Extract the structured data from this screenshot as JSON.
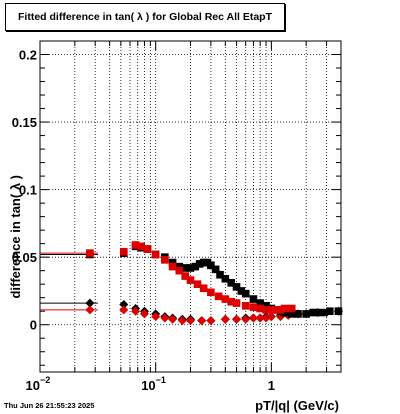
{
  "chart_data": {
    "type": "scatter",
    "title": "Fitted difference in tan( λ ) for Global Rec All EtapT",
    "xlabel": "pT/|q| (GeV/c)",
    "ylabel": "difference in tan( λ )",
    "xscale": "log",
    "xlim": [
      0.01,
      4.0
    ],
    "ylim": [
      -0.035,
      0.21
    ],
    "grid": true,
    "xticks": [
      {
        "v": 0.01,
        "base": "10",
        "exp": "−2"
      },
      {
        "v": 0.1,
        "base": "10",
        "exp": "−1"
      },
      {
        "v": 1,
        "base": "1",
        "exp": ""
      }
    ],
    "yticks": [
      {
        "v": 0,
        "label": "0"
      },
      {
        "v": 0.05,
        "label": "0.05"
      },
      {
        "v": 0.1,
        "label": "0.1"
      },
      {
        "v": 0.15,
        "label": "0.15"
      },
      {
        "v": 0.2,
        "label": "0.2"
      }
    ],
    "series": [
      {
        "marker": "square",
        "color": "#000000",
        "x": [
          0.027,
          0.053,
          0.067,
          0.075,
          0.085,
          0.1,
          0.12,
          0.14,
          0.16,
          0.18,
          0.2,
          0.22,
          0.24,
          0.26,
          0.28,
          0.3,
          0.33,
          0.36,
          0.4,
          0.45,
          0.5,
          0.55,
          0.6,
          0.7,
          0.8,
          0.9,
          1.0,
          1.1,
          1.2,
          1.3,
          1.5,
          1.7,
          2.0,
          2.3,
          2.7,
          3.2,
          3.8
        ],
        "y": [
          0.052,
          0.053,
          0.058,
          0.057,
          0.056,
          0.052,
          0.05,
          0.046,
          0.043,
          0.042,
          0.042,
          0.043,
          0.045,
          0.046,
          0.046,
          0.044,
          0.041,
          0.037,
          0.034,
          0.031,
          0.028,
          0.025,
          0.023,
          0.019,
          0.016,
          0.014,
          0.012,
          0.011,
          0.01,
          0.009,
          0.008,
          0.008,
          0.008,
          0.009,
          0.009,
          0.01,
          0.01
        ]
      },
      {
        "marker": "square",
        "color": "#dd0000",
        "x": [
          0.027,
          0.053,
          0.067,
          0.075,
          0.085,
          0.1,
          0.12,
          0.14,
          0.16,
          0.18,
          0.2,
          0.23,
          0.26,
          0.3,
          0.35,
          0.4,
          0.45,
          0.5,
          0.6,
          0.7,
          0.8,
          0.9,
          1.0,
          1.1,
          1.2,
          1.3,
          1.5
        ],
        "y": [
          0.053,
          0.054,
          0.059,
          0.058,
          0.056,
          0.052,
          0.048,
          0.043,
          0.04,
          0.036,
          0.033,
          0.03,
          0.027,
          0.024,
          0.021,
          0.019,
          0.017,
          0.016,
          0.014,
          0.013,
          0.012,
          0.011,
          0.011,
          0.011,
          0.011,
          0.012,
          0.012
        ]
      },
      {
        "marker": "diamond",
        "color": "#000000",
        "x": [
          0.027,
          0.053,
          0.067,
          0.08,
          0.1,
          0.12,
          0.14,
          0.17,
          0.2,
          0.25,
          0.3,
          0.4,
          0.5,
          0.6,
          0.7,
          0.8,
          0.9,
          1.0,
          1.2,
          1.4,
          1.7,
          2.0,
          2.5,
          3.0,
          3.8
        ],
        "y": [
          0.016,
          0.015,
          0.012,
          0.01,
          0.008,
          0.006,
          0.005,
          0.004,
          0.004,
          0.003,
          0.003,
          0.004,
          0.004,
          0.005,
          0.005,
          0.005,
          0.006,
          0.006,
          0.007,
          0.007,
          0.008,
          0.008,
          0.009,
          0.009,
          0.01
        ]
      },
      {
        "marker": "diamond",
        "color": "#dd0000",
        "x": [
          0.027,
          0.053,
          0.067,
          0.08,
          0.1,
          0.12,
          0.14,
          0.17,
          0.2,
          0.25,
          0.3,
          0.4,
          0.5,
          0.6,
          0.7,
          0.8,
          0.9,
          1.0,
          1.2,
          1.4
        ],
        "y": [
          0.011,
          0.011,
          0.01,
          0.008,
          0.006,
          0.005,
          0.004,
          0.003,
          0.003,
          0.003,
          0.003,
          0.004,
          0.004,
          0.004,
          0.005,
          0.005,
          0.005,
          0.006,
          0.006,
          0.007
        ]
      }
    ]
  },
  "footer": {
    "timestamp": "Thu Jun 26 21:55:23 2025"
  }
}
